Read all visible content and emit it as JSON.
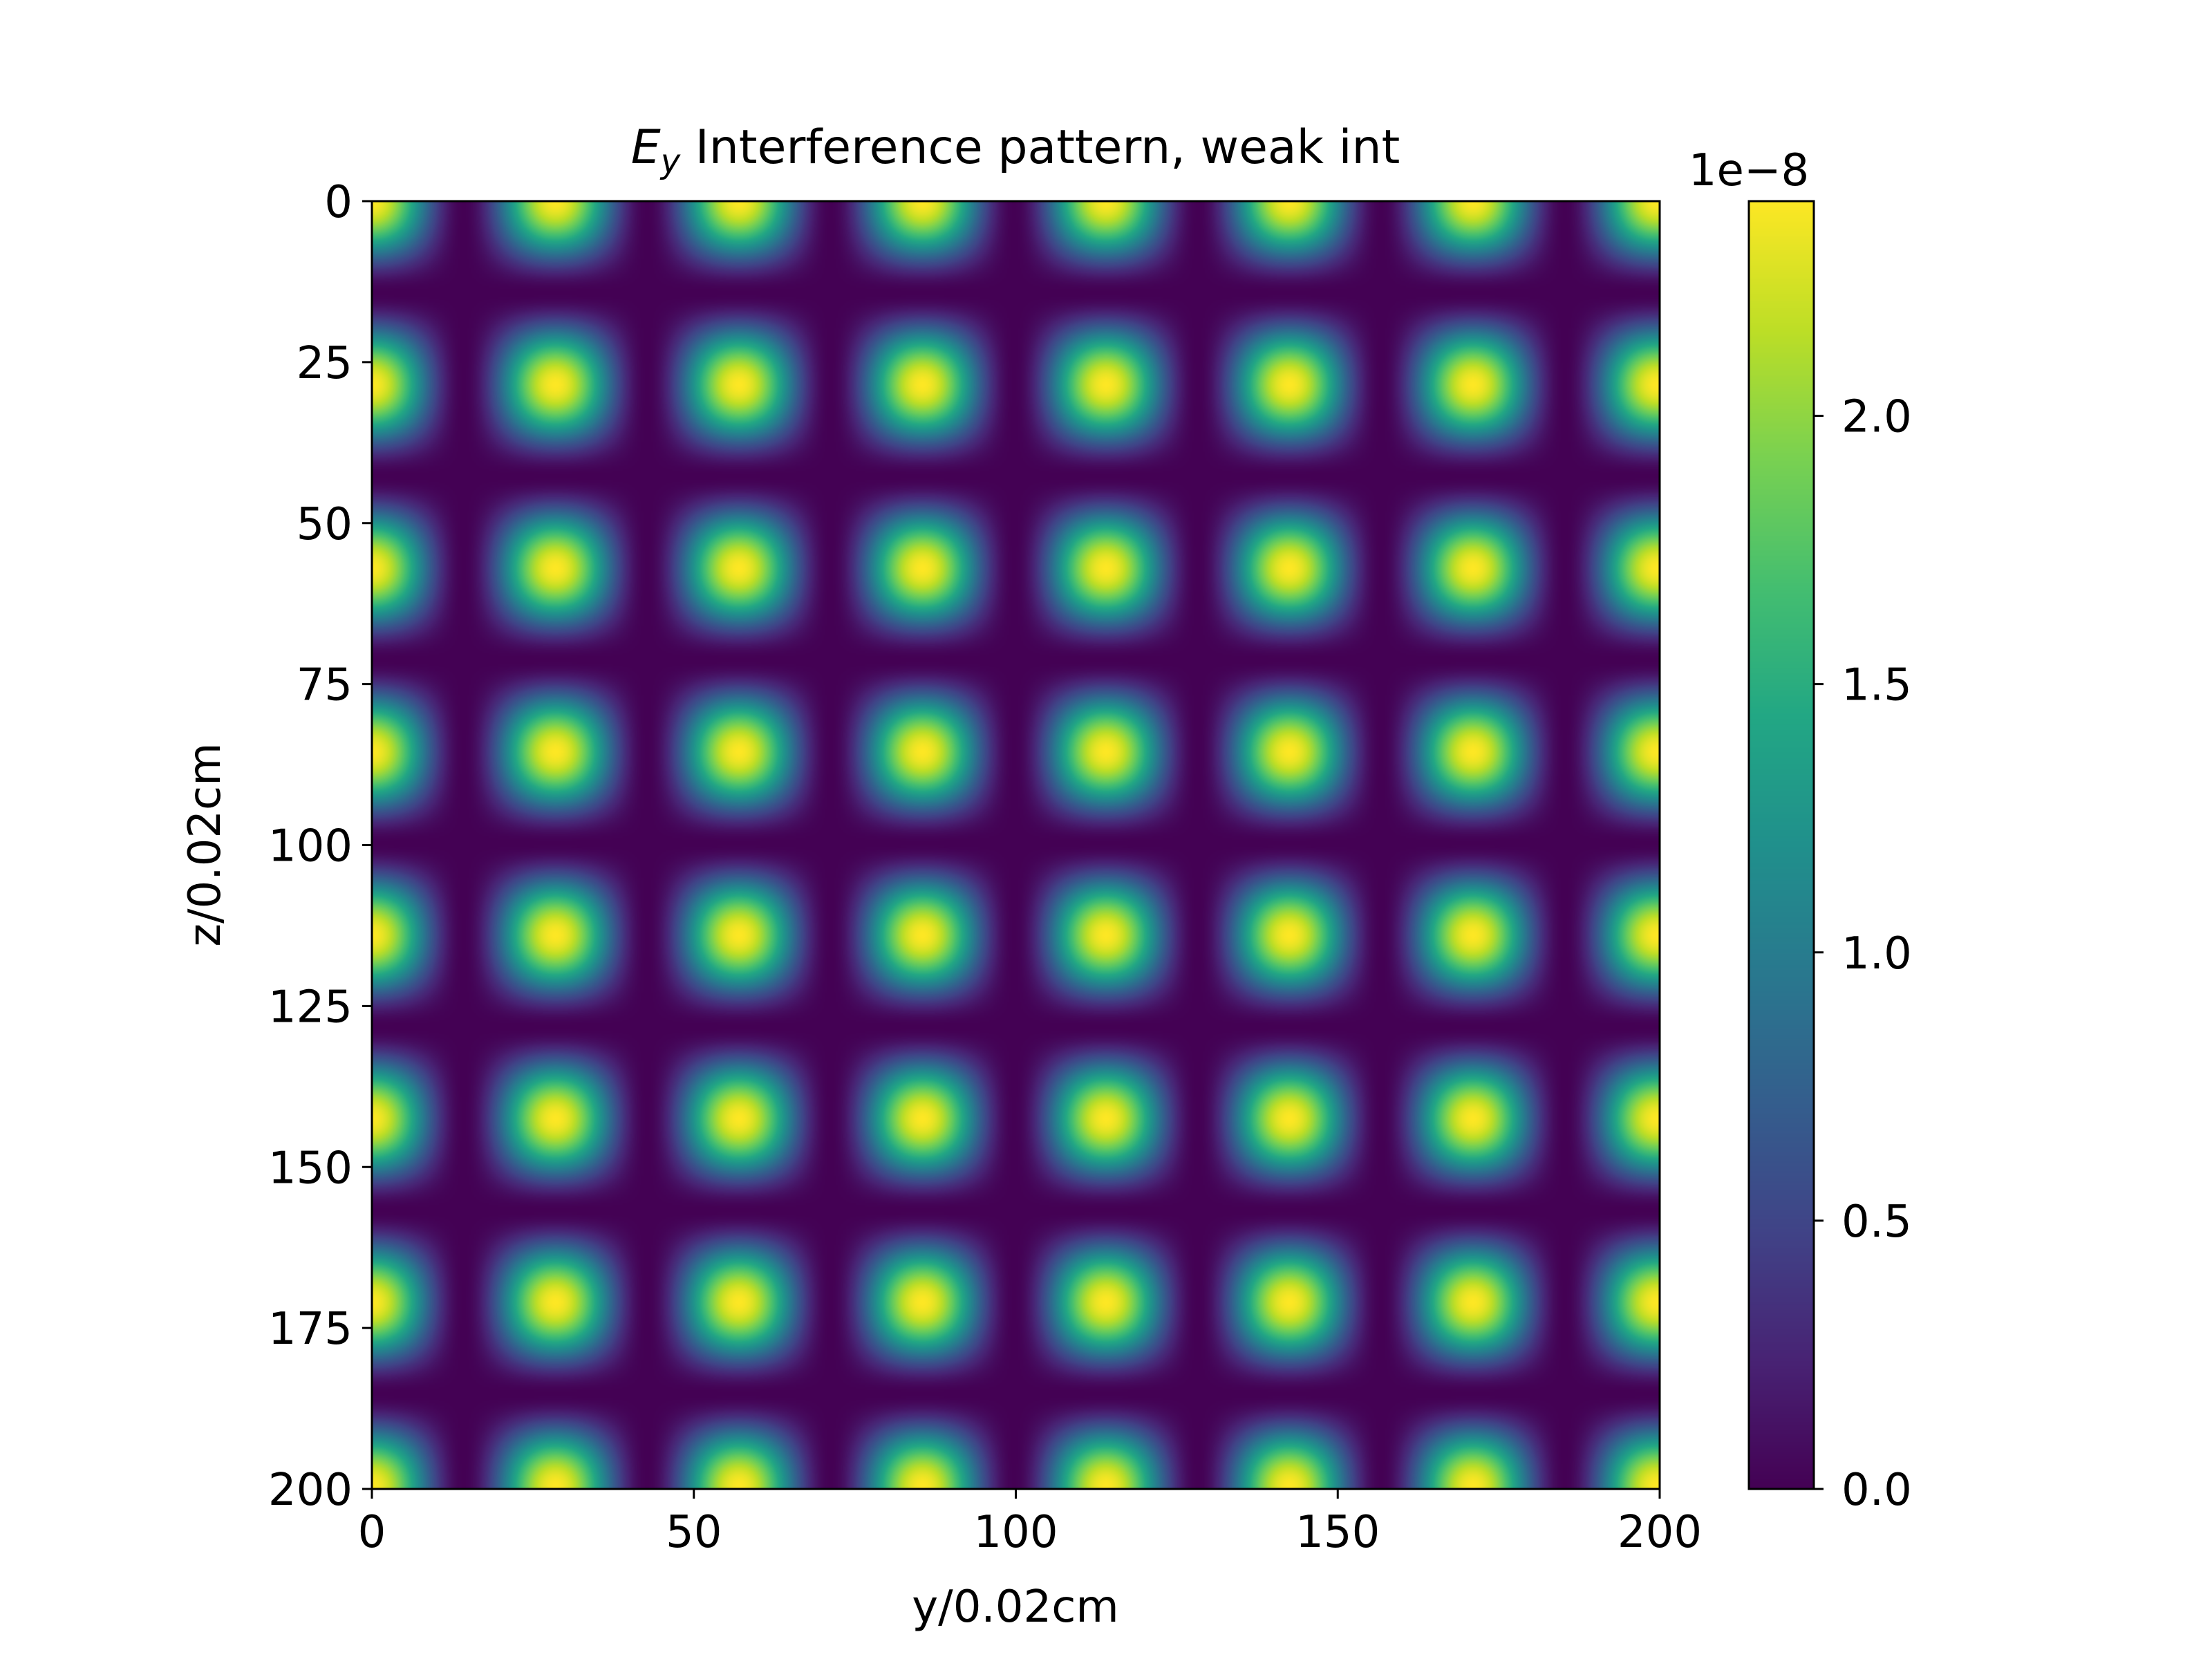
{
  "chart_data": {
    "type": "heatmap",
    "title_main": "E",
    "title_sub": "y",
    "title_rest": " Interference pattern, weak int",
    "xlabel": "y/0.02cm",
    "ylabel": "z/0.02cm",
    "xlim": [
      0,
      200
    ],
    "ylim": [
      200,
      0
    ],
    "x_ticks": [
      "0",
      "50",
      "100",
      "150",
      "200"
    ],
    "y_ticks": [
      "0",
      "25",
      "50",
      "75",
      "100",
      "125",
      "150",
      "175",
      "200"
    ],
    "colormap": "viridis",
    "colorbar": {
      "range": [
        0,
        2.4
      ],
      "ticks": [
        "0.0",
        "0.5",
        "1.0",
        "1.5",
        "2.0"
      ],
      "offset_label": "1e−8"
    },
    "field": {
      "model": "A*|cos(k*y)*cos(k*z)|^2",
      "amplitude": 2.4,
      "period": 28.5,
      "peak_y": [
        0,
        28.5,
        57,
        85.5,
        114,
        142.5,
        171,
        199.5
      ],
      "peak_z": [
        0,
        28.5,
        57,
        85.5,
        114,
        142.5,
        171,
        199.5
      ],
      "node_y": [
        14,
        42.5,
        71,
        99.5,
        128,
        156.5,
        185
      ],
      "node_z": [
        14,
        42.5,
        71,
        99.5,
        128,
        156.5,
        185
      ]
    },
    "grid": false
  }
}
